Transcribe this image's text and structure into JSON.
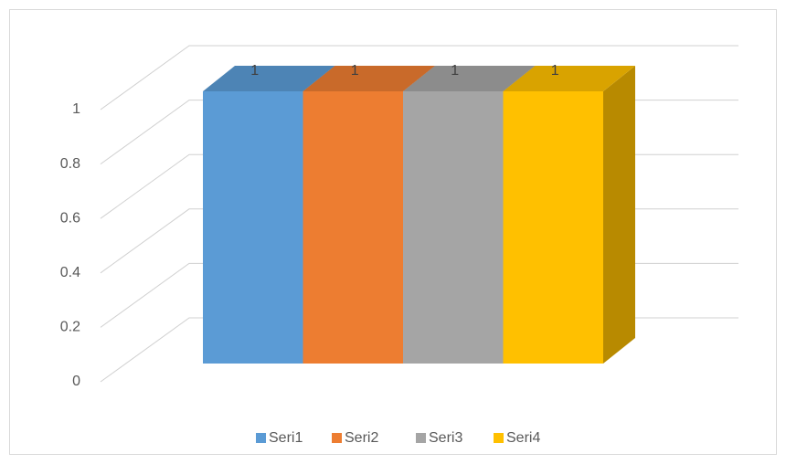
{
  "chart_data": {
    "type": "bar3d",
    "categories": [
      null
    ],
    "series": [
      {
        "name": "Seri1",
        "color": "#5b9bd5",
        "values": [
          1
        ]
      },
      {
        "name": "Seri2",
        "color": "#ed7d31",
        "values": [
          1
        ]
      },
      {
        "name": "Seri3",
        "color": "#a5a5a5",
        "values": [
          1
        ]
      },
      {
        "name": "Seri4",
        "color": "#ffc000",
        "values": [
          1
        ]
      }
    ],
    "ylim": [
      0,
      1
    ],
    "yticks": [
      0,
      0.2,
      0.4,
      0.6,
      0.8,
      1
    ],
    "grid": true,
    "legend": "bottom"
  }
}
